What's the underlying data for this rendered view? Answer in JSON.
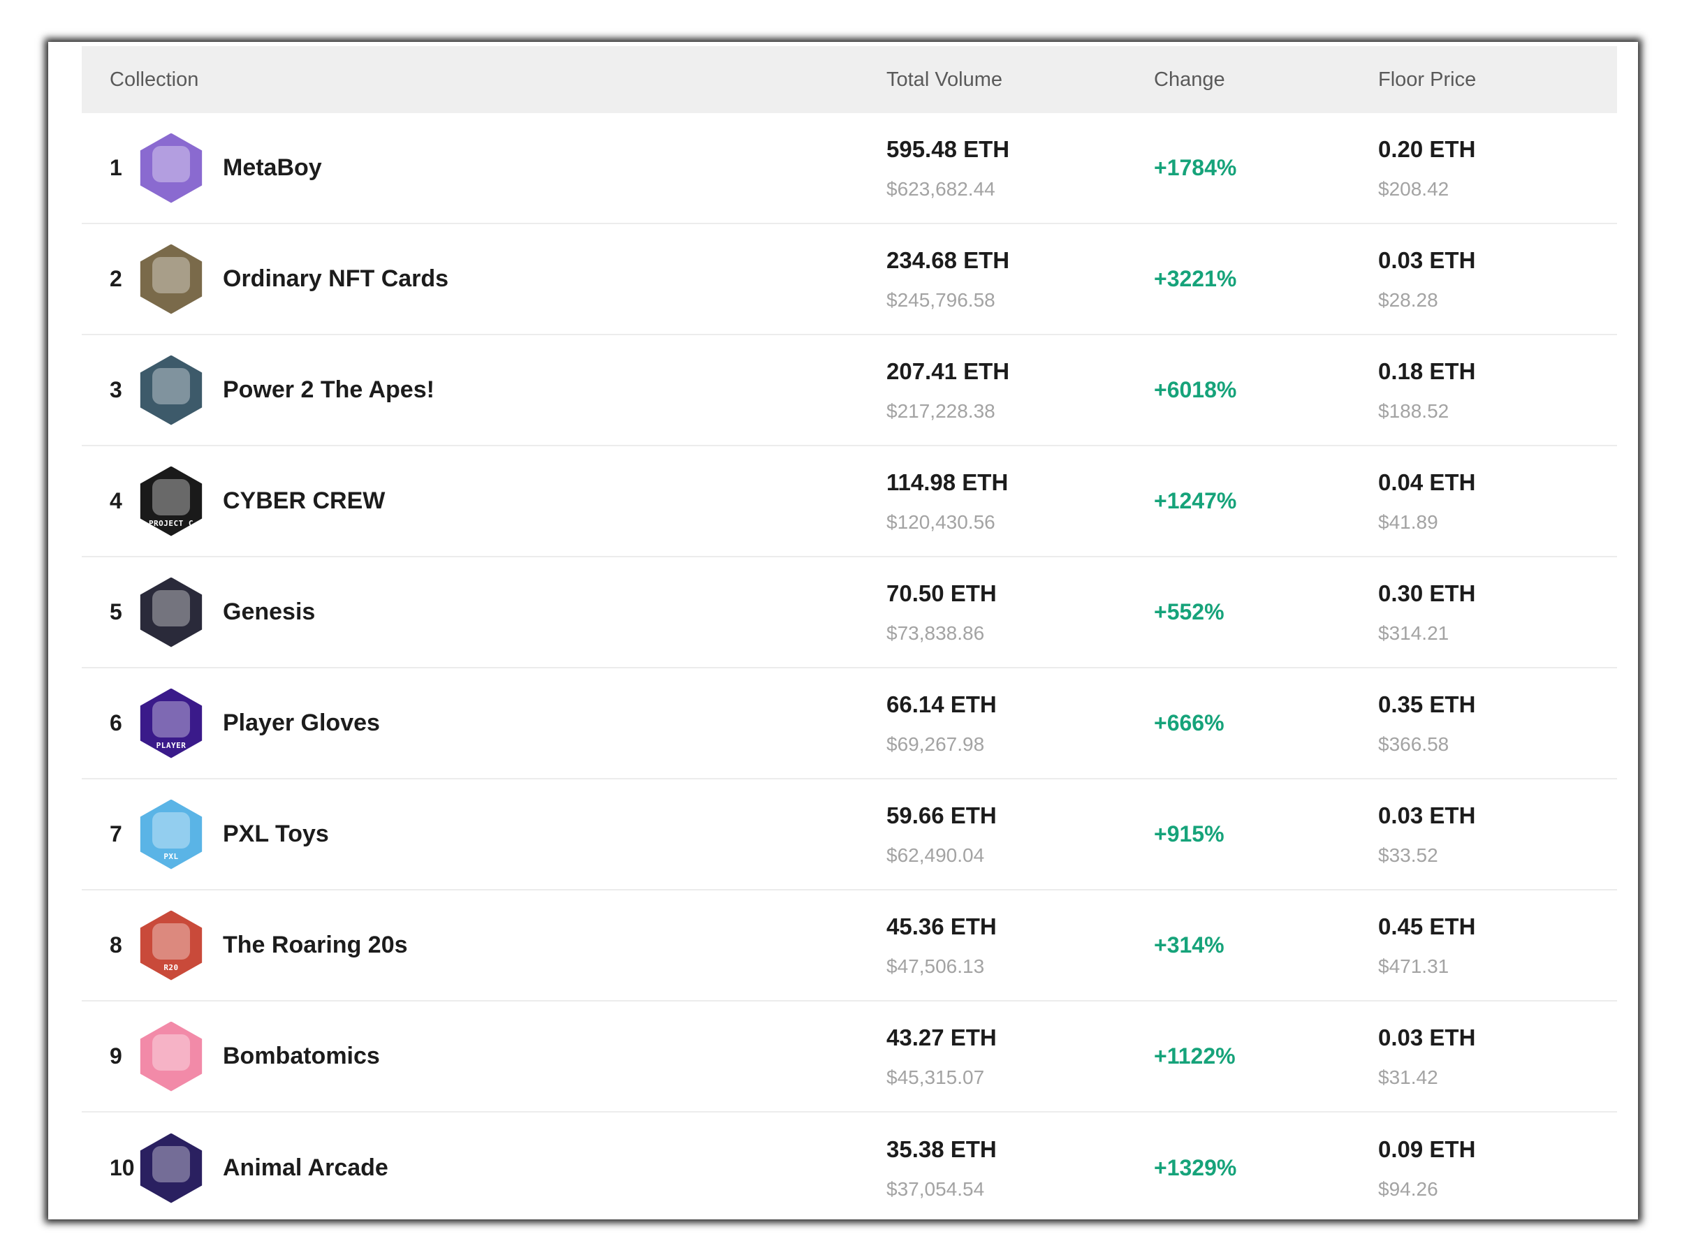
{
  "headers": {
    "collection": "Collection",
    "total_volume": "Total Volume",
    "change": "Change",
    "floor_price": "Floor Price"
  },
  "rows": [
    {
      "rank": "1",
      "name": "MetaBoy",
      "logo_icon": "metaboy-logo-icon",
      "logo_color": "#8a6ad0",
      "logo_text": "",
      "volume_eth": "595.48 ETH",
      "volume_usd": "$623,682.44",
      "change": "+1784%",
      "floor_eth": "0.20 ETH",
      "floor_usd": "$208.42"
    },
    {
      "rank": "2",
      "name": "Ordinary NFT Cards",
      "logo_icon": "ordinary-nft-cards-logo-icon",
      "logo_color": "#7a6a4a",
      "logo_text": "",
      "volume_eth": "234.68 ETH",
      "volume_usd": "$245,796.58",
      "change": "+3221%",
      "floor_eth": "0.03 ETH",
      "floor_usd": "$28.28"
    },
    {
      "rank": "3",
      "name": "Power 2 The Apes!",
      "logo_icon": "power-2-the-apes-logo-icon",
      "logo_color": "#3d5a6a",
      "logo_text": "",
      "volume_eth": "207.41 ETH",
      "volume_usd": "$217,228.38",
      "change": "+6018%",
      "floor_eth": "0.18 ETH",
      "floor_usd": "$188.52"
    },
    {
      "rank": "4",
      "name": "CYBER CREW",
      "logo_icon": "cyber-crew-logo-icon",
      "logo_color": "#1a1a1a",
      "logo_text": "PROJECT C",
      "volume_eth": "114.98 ETH",
      "volume_usd": "$120,430.56",
      "change": "+1247%",
      "floor_eth": "0.04 ETH",
      "floor_usd": "$41.89"
    },
    {
      "rank": "5",
      "name": "Genesis",
      "logo_icon": "genesis-logo-icon",
      "logo_color": "#2a2a3a",
      "logo_text": "",
      "volume_eth": "70.50 ETH",
      "volume_usd": "$73,838.86",
      "change": "+552%",
      "floor_eth": "0.30 ETH",
      "floor_usd": "$314.21"
    },
    {
      "rank": "6",
      "name": "Player Gloves",
      "logo_icon": "player-gloves-logo-icon",
      "logo_color": "#3a1a8a",
      "logo_text": "PLAYER",
      "volume_eth": "66.14 ETH",
      "volume_usd": "$69,267.98",
      "change": "+666%",
      "floor_eth": "0.35 ETH",
      "floor_usd": "$366.58"
    },
    {
      "rank": "7",
      "name": "PXL Toys",
      "logo_icon": "pxl-toys-logo-icon",
      "logo_color": "#5ab4e6",
      "logo_text": "PXL",
      "volume_eth": "59.66 ETH",
      "volume_usd": "$62,490.04",
      "change": "+915%",
      "floor_eth": "0.03 ETH",
      "floor_usd": "$33.52"
    },
    {
      "rank": "8",
      "name": "The Roaring 20s",
      "logo_icon": "the-roaring-20s-logo-icon",
      "logo_color": "#c94a3a",
      "logo_text": "R20",
      "volume_eth": "45.36 ETH",
      "volume_usd": "$47,506.13",
      "change": "+314%",
      "floor_eth": "0.45 ETH",
      "floor_usd": "$471.31"
    },
    {
      "rank": "9",
      "name": "Bombatomics",
      "logo_icon": "bombatomics-logo-icon",
      "logo_color": "#f28aa8",
      "logo_text": "",
      "volume_eth": "43.27 ETH",
      "volume_usd": "$45,315.07",
      "change": "+1122%",
      "floor_eth": "0.03 ETH",
      "floor_usd": "$31.42"
    },
    {
      "rank": "10",
      "name": "Animal Arcade",
      "logo_icon": "animal-arcade-logo-icon",
      "logo_color": "#2a2060",
      "logo_text": "",
      "volume_eth": "35.38 ETH",
      "volume_usd": "$37,054.54",
      "change": "+1329%",
      "floor_eth": "0.09 ETH",
      "floor_usd": "$94.26"
    }
  ]
}
